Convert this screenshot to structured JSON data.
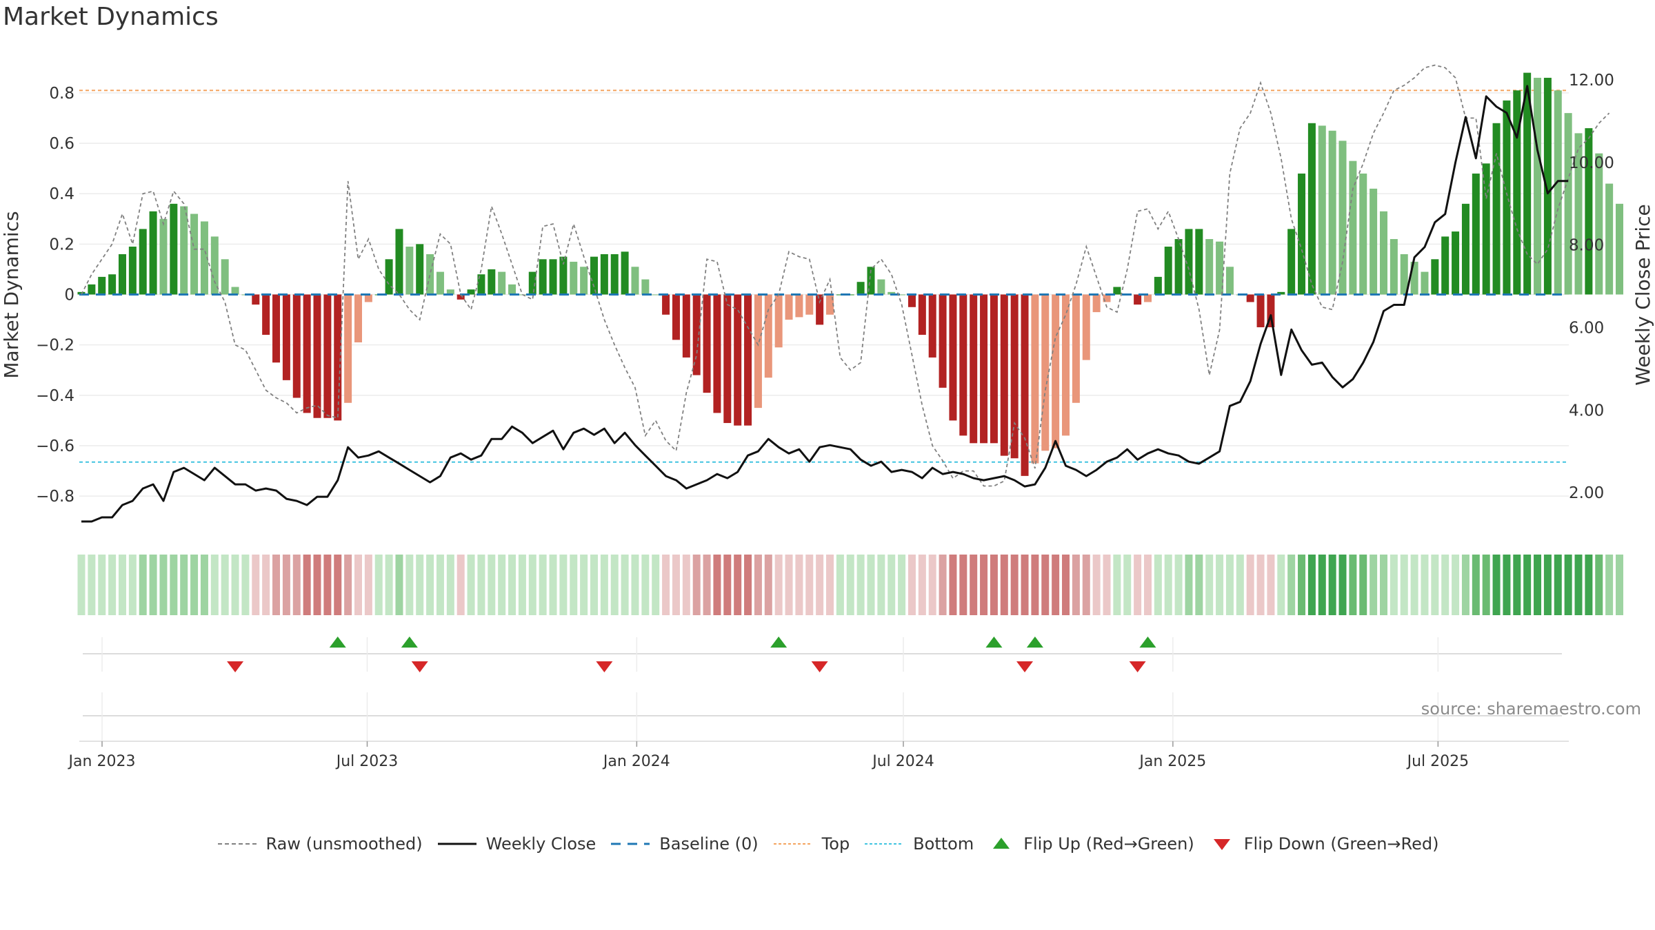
{
  "title": "Market Dynamics",
  "source_text": "source: sharemaestro.com",
  "colors": {
    "green_dark": "#228b22",
    "green_light": "#7fbf7f",
    "red_dark": "#b22222",
    "red_light": "#e9967a",
    "close_line": "#111111",
    "raw_line": "#808080",
    "baseline": "#1f77b4",
    "top": "#f4a460",
    "bottom": "#40c4e0",
    "flip_up": "#2ca02c",
    "flip_down": "#d62728"
  },
  "legend": {
    "raw": "Raw (unsmoothed)",
    "close": "Weekly Close",
    "baseline": "Baseline (0)",
    "top": "Top",
    "bottom": "Bottom",
    "flip_up": "Flip Up (Red→Green)",
    "flip_down": "Flip Down (Green→Red)"
  },
  "chart_data": {
    "type": "bar",
    "frequency": "weekly",
    "start_date": "2023-01-01",
    "x_ticks": [
      {
        "label": "Jan 2023",
        "date": "2023-01-01"
      },
      {
        "label": "Jul 2023",
        "date": "2023-07-01"
      },
      {
        "label": "Jan 2024",
        "date": "2024-01-01"
      },
      {
        "label": "Jul 2024",
        "date": "2024-07-01"
      },
      {
        "label": "Jan 2025",
        "date": "2025-01-01"
      },
      {
        "label": "Jul 2025",
        "date": "2025-07-01"
      }
    ],
    "y_left": {
      "label": "Market Dynamics",
      "ticks": [
        -0.8,
        -0.6,
        -0.4,
        -0.2,
        0,
        0.2,
        0.4,
        0.6,
        0.8
      ],
      "tick_labels": [
        "−0.8",
        "−0.6",
        "−0.4",
        "−0.2",
        "0",
        "0.2",
        "0.4",
        "0.6",
        "0.8"
      ],
      "range": [
        -0.95,
        0.95
      ]
    },
    "y_right": {
      "label": "Weekly Close Price",
      "ticks": [
        2,
        4,
        6,
        8,
        10,
        12
      ],
      "tick_labels": [
        "2.00",
        "4.00",
        "6.00",
        "8.00",
        "10.00",
        "12.00"
      ],
      "range": [
        1.0,
        12.6
      ]
    },
    "top_level": 0.81,
    "bottom_level": -0.665,
    "baseline": 0,
    "grid": true,
    "legend_position": "bottom",
    "series": [
      {
        "name": "Market Dynamics",
        "values": [
          0.01,
          0.04,
          0.07,
          0.08,
          0.16,
          0.19,
          0.26,
          0.33,
          0.3,
          0.36,
          0.35,
          0.32,
          0.29,
          0.23,
          0.14,
          0.03,
          0.0,
          -0.04,
          -0.16,
          -0.27,
          -0.34,
          -0.41,
          -0.47,
          -0.49,
          -0.49,
          -0.5,
          -0.43,
          -0.19,
          -0.03,
          0.0,
          0.14,
          0.26,
          0.19,
          0.2,
          0.16,
          0.09,
          0.02,
          -0.02,
          0.02,
          0.08,
          0.1,
          0.09,
          0.04,
          0.0,
          0.09,
          0.14,
          0.14,
          0.15,
          0.13,
          0.11,
          0.15,
          0.16,
          0.16,
          0.17,
          0.11,
          0.06,
          0.0,
          -0.08,
          -0.18,
          -0.25,
          -0.32,
          -0.39,
          -0.47,
          -0.51,
          -0.52,
          -0.52,
          -0.45,
          -0.33,
          -0.21,
          -0.1,
          -0.09,
          -0.08,
          -0.12,
          -0.08,
          0.0,
          0.0,
          0.05,
          0.11,
          0.06,
          0.01,
          0.0,
          -0.05,
          -0.16,
          -0.25,
          -0.37,
          -0.5,
          -0.56,
          -0.59,
          -0.59,
          -0.59,
          -0.64,
          -0.65,
          -0.72,
          -0.67,
          -0.62,
          -0.61,
          -0.56,
          -0.43,
          -0.26,
          -0.07,
          -0.03,
          0.03,
          0.0,
          -0.04,
          -0.03,
          0.07,
          0.19,
          0.22,
          0.26,
          0.26,
          0.22,
          0.21,
          0.11,
          0.0,
          -0.03,
          -0.13,
          -0.13,
          0.01,
          0.26,
          0.48,
          0.68,
          0.67,
          0.65,
          0.61,
          0.53,
          0.48,
          0.42,
          0.33,
          0.22,
          0.16,
          0.13,
          0.09,
          0.14,
          0.23,
          0.25,
          0.36,
          0.48,
          0.52,
          0.68,
          0.77,
          0.81,
          0.88,
          0.86,
          0.86,
          0.81,
          0.72,
          0.64,
          0.66,
          0.56,
          0.44,
          0.36
        ]
      },
      {
        "name": "Raw (unsmoothed)",
        "values": [
          0.0,
          0.08,
          0.14,
          0.2,
          0.32,
          0.2,
          0.4,
          0.41,
          0.28,
          0.41,
          0.36,
          0.18,
          0.18,
          0.05,
          -0.03,
          -0.2,
          -0.22,
          -0.3,
          -0.38,
          -0.41,
          -0.43,
          -0.47,
          -0.45,
          -0.44,
          -0.48,
          -0.49,
          0.45,
          0.14,
          0.22,
          0.1,
          0.04,
          0.0,
          -0.06,
          -0.1,
          0.08,
          0.24,
          0.2,
          0.0,
          -0.06,
          0.1,
          0.35,
          0.24,
          0.12,
          0.0,
          -0.02,
          0.27,
          0.28,
          0.12,
          0.28,
          0.15,
          0.03,
          -0.1,
          -0.2,
          -0.29,
          -0.37,
          -0.56,
          -0.5,
          -0.58,
          -0.62,
          -0.39,
          -0.24,
          0.14,
          0.13,
          -0.04,
          -0.06,
          -0.13,
          -0.2,
          -0.06,
          0.0,
          0.17,
          0.15,
          0.14,
          -0.03,
          0.06,
          -0.25,
          -0.3,
          -0.27,
          0.1,
          0.14,
          0.08,
          -0.04,
          -0.24,
          -0.44,
          -0.6,
          -0.66,
          -0.73,
          -0.7,
          -0.7,
          -0.76,
          -0.76,
          -0.74,
          -0.51,
          -0.57,
          -0.69,
          -0.38,
          -0.17,
          -0.08,
          0.04,
          0.19,
          0.07,
          -0.05,
          -0.07,
          0.1,
          0.33,
          0.34,
          0.26,
          0.33,
          0.22,
          0.1,
          -0.06,
          -0.32,
          -0.14,
          0.48,
          0.66,
          0.72,
          0.84,
          0.72,
          0.54,
          0.3,
          0.18,
          0.04,
          -0.05,
          -0.06,
          0.13,
          0.42,
          0.52,
          0.64,
          0.72,
          0.81,
          0.83,
          0.86,
          0.9,
          0.91,
          0.9,
          0.86,
          0.7,
          0.7,
          0.38,
          0.56,
          0.4,
          0.26,
          0.16,
          0.12,
          0.18,
          0.34,
          0.46,
          0.58,
          0.62,
          0.68,
          0.72
        ]
      },
      {
        "name": "Weekly Close",
        "values": [
          1.3,
          1.3,
          1.4,
          1.4,
          1.7,
          1.8,
          2.1,
          2.2,
          1.8,
          2.5,
          2.6,
          2.45,
          2.3,
          2.6,
          2.4,
          2.2,
          2.2,
          2.05,
          2.1,
          2.05,
          1.85,
          1.8,
          1.7,
          1.9,
          1.9,
          2.3,
          3.1,
          2.85,
          2.9,
          3.0,
          2.85,
          2.7,
          2.55,
          2.4,
          2.25,
          2.4,
          2.85,
          2.95,
          2.8,
          2.9,
          3.3,
          3.3,
          3.6,
          3.45,
          3.2,
          3.35,
          3.5,
          3.05,
          3.45,
          3.55,
          3.4,
          3.55,
          3.2,
          3.45,
          3.15,
          2.9,
          2.65,
          2.4,
          2.3,
          2.1,
          2.2,
          2.3,
          2.45,
          2.35,
          2.5,
          2.9,
          3.0,
          3.3,
          3.1,
          2.95,
          3.05,
          2.75,
          3.1,
          3.15,
          3.1,
          3.05,
          2.8,
          2.65,
          2.75,
          2.5,
          2.55,
          2.5,
          2.35,
          2.6,
          2.45,
          2.5,
          2.45,
          2.35,
          2.3,
          2.35,
          2.4,
          2.3,
          2.15,
          2.2,
          2.6,
          3.25,
          2.65,
          2.55,
          2.4,
          2.55,
          2.75,
          2.85,
          3.05,
          2.8,
          2.95,
          3.05,
          2.95,
          2.9,
          2.75,
          2.7,
          2.85,
          3.0,
          4.1,
          4.2,
          4.7,
          5.6,
          6.3,
          4.85,
          5.95,
          5.45,
          5.1,
          5.15,
          4.8,
          4.55,
          4.75,
          5.15,
          5.65,
          6.4,
          6.55,
          6.55,
          7.7,
          7.95,
          8.55,
          8.75,
          10.0,
          11.1,
          10.1,
          11.6,
          11.35,
          11.2,
          10.6,
          11.85,
          10.3,
          9.25,
          9.55,
          9.55
        ]
      }
    ],
    "flip_up_weeks": [
      25,
      32,
      68,
      89,
      93,
      104
    ],
    "flip_down_weeks": [
      15,
      33,
      51,
      72,
      92,
      103
    ]
  }
}
